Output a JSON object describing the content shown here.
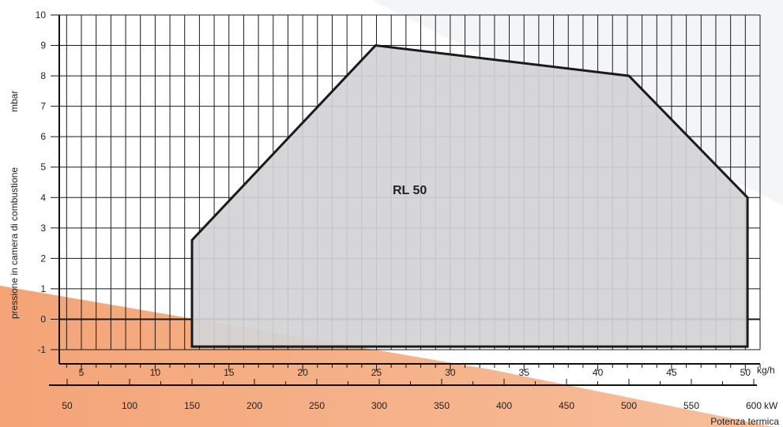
{
  "chart_data": {
    "type": "area",
    "title": "",
    "region_label": "RL 50",
    "ylabel": "pressione in camera di combustione",
    "ylabel_unit": "mbar",
    "xlabel": "Potenza termica",
    "ylim": [
      -1,
      10
    ],
    "y_ticks": [
      10,
      9,
      8,
      7,
      6,
      5,
      4,
      3,
      2,
      1,
      0,
      -1
    ],
    "y_tick_labels": [
      "10",
      "9",
      "8",
      "7",
      "6",
      "5",
      "4",
      "3",
      "2",
      "1",
      "0",
      "-1"
    ],
    "x_axis_kgh": {
      "unit": "kg/h",
      "range": [
        3.5,
        51
      ],
      "ticks": [
        5,
        10,
        15,
        20,
        25,
        30,
        35,
        40,
        45,
        50
      ],
      "tick_labels": [
        "5",
        "10",
        "15",
        "20",
        "25",
        "30",
        "35",
        "40",
        "45",
        "50"
      ]
    },
    "x_axis_kw": {
      "unit": "kW",
      "ticks": [
        50,
        100,
        150,
        200,
        250,
        300,
        350,
        400,
        450,
        500,
        550,
        600
      ],
      "tick_labels": [
        "50",
        "100",
        "150",
        "200",
        "250",
        "300",
        "350",
        "400",
        "450",
        "500",
        "550",
        "600"
      ]
    },
    "series": [
      {
        "x_kW": [
          150,
          150,
          297,
          500,
          595,
          595
        ],
        "y_mbar": [
          -0.9,
          2.6,
          9.0,
          8.0,
          4.0,
          -0.9
        ]
      }
    ],
    "grid": true,
    "colors": {
      "fill": "#d3d3d5",
      "outline": "#1a1a1a",
      "grid": "#1a1a1a",
      "accent_orange": "#f4a87a"
    }
  }
}
